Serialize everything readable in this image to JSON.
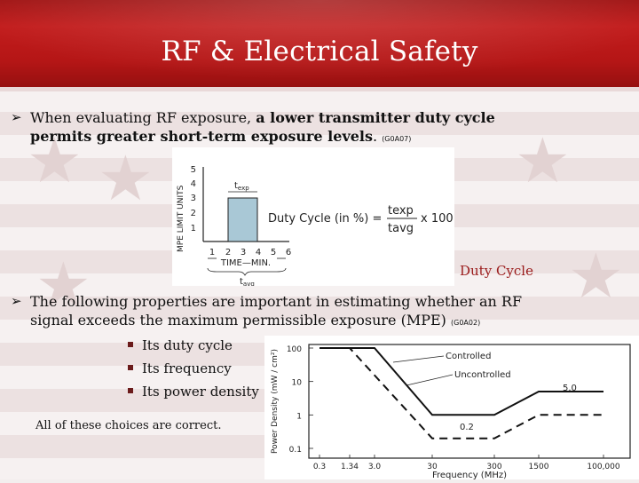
{
  "slide": {
    "title": "RF & Electrical Safety",
    "bullet1": {
      "plain": "When evaluating RF exposure, ",
      "bold_line1": "a lower transmitter duty cycle",
      "bold_line2": "permits greater short-term exposure levels",
      "period": ".",
      "code": "(G0A07)"
    },
    "caption": "Duty Cycle",
    "bullet2": {
      "line1": "The following properties are important in estimating whether an RF",
      "line2": "signal exceeds the maximum permissible exposure (MPE)",
      "code": "(G0A02)"
    },
    "properties": [
      "Its duty cycle",
      "Its frequency",
      "Its power density"
    ],
    "answer": "All of these choices are correct."
  },
  "duty_figure": {
    "y_ticks": [
      "1",
      "2",
      "3",
      "4",
      "5"
    ],
    "ylabel": "MPE LIMIT UNITS",
    "x_ticks": [
      "1",
      "2",
      "3",
      "4",
      "5",
      "6"
    ],
    "xlabel": "TIME—MIN.",
    "texp": "t",
    "texp_sub": "exp",
    "tavg": "t",
    "tavg_sub": "avg",
    "formula_label": "Duty Cycle (in %) =",
    "formula_num": "texp",
    "formula_den": "tavg",
    "formula_mult": "x 100"
  },
  "chart_data": {
    "type": "line",
    "xlabel": "Frequency (MHz)",
    "ylabel": "Power Density (mW / cm²)",
    "x_tick_labels": [
      "0.3",
      "1.34",
      "3.0",
      "30",
      "300",
      "1500",
      "100,000"
    ],
    "y_tick_labels": [
      "100",
      "10",
      "1",
      "0.1"
    ],
    "x_scale": "log",
    "y_scale": "log",
    "ylim": [
      0.1,
      100
    ],
    "series": [
      {
        "name": "Controlled",
        "x": [
          0.3,
          3.0,
          30,
          300,
          1500,
          100000
        ],
        "y": [
          100,
          100,
          1,
          1,
          5,
          5
        ]
      },
      {
        "name": "Uncontrolled",
        "x": [
          0.3,
          1.34,
          30,
          300,
          1500,
          100000
        ],
        "y": [
          100,
          100,
          0.2,
          0.2,
          1,
          1
        ]
      }
    ],
    "annotations": [
      "Controlled",
      "Uncontrolled",
      "5.0",
      "0.2"
    ]
  }
}
